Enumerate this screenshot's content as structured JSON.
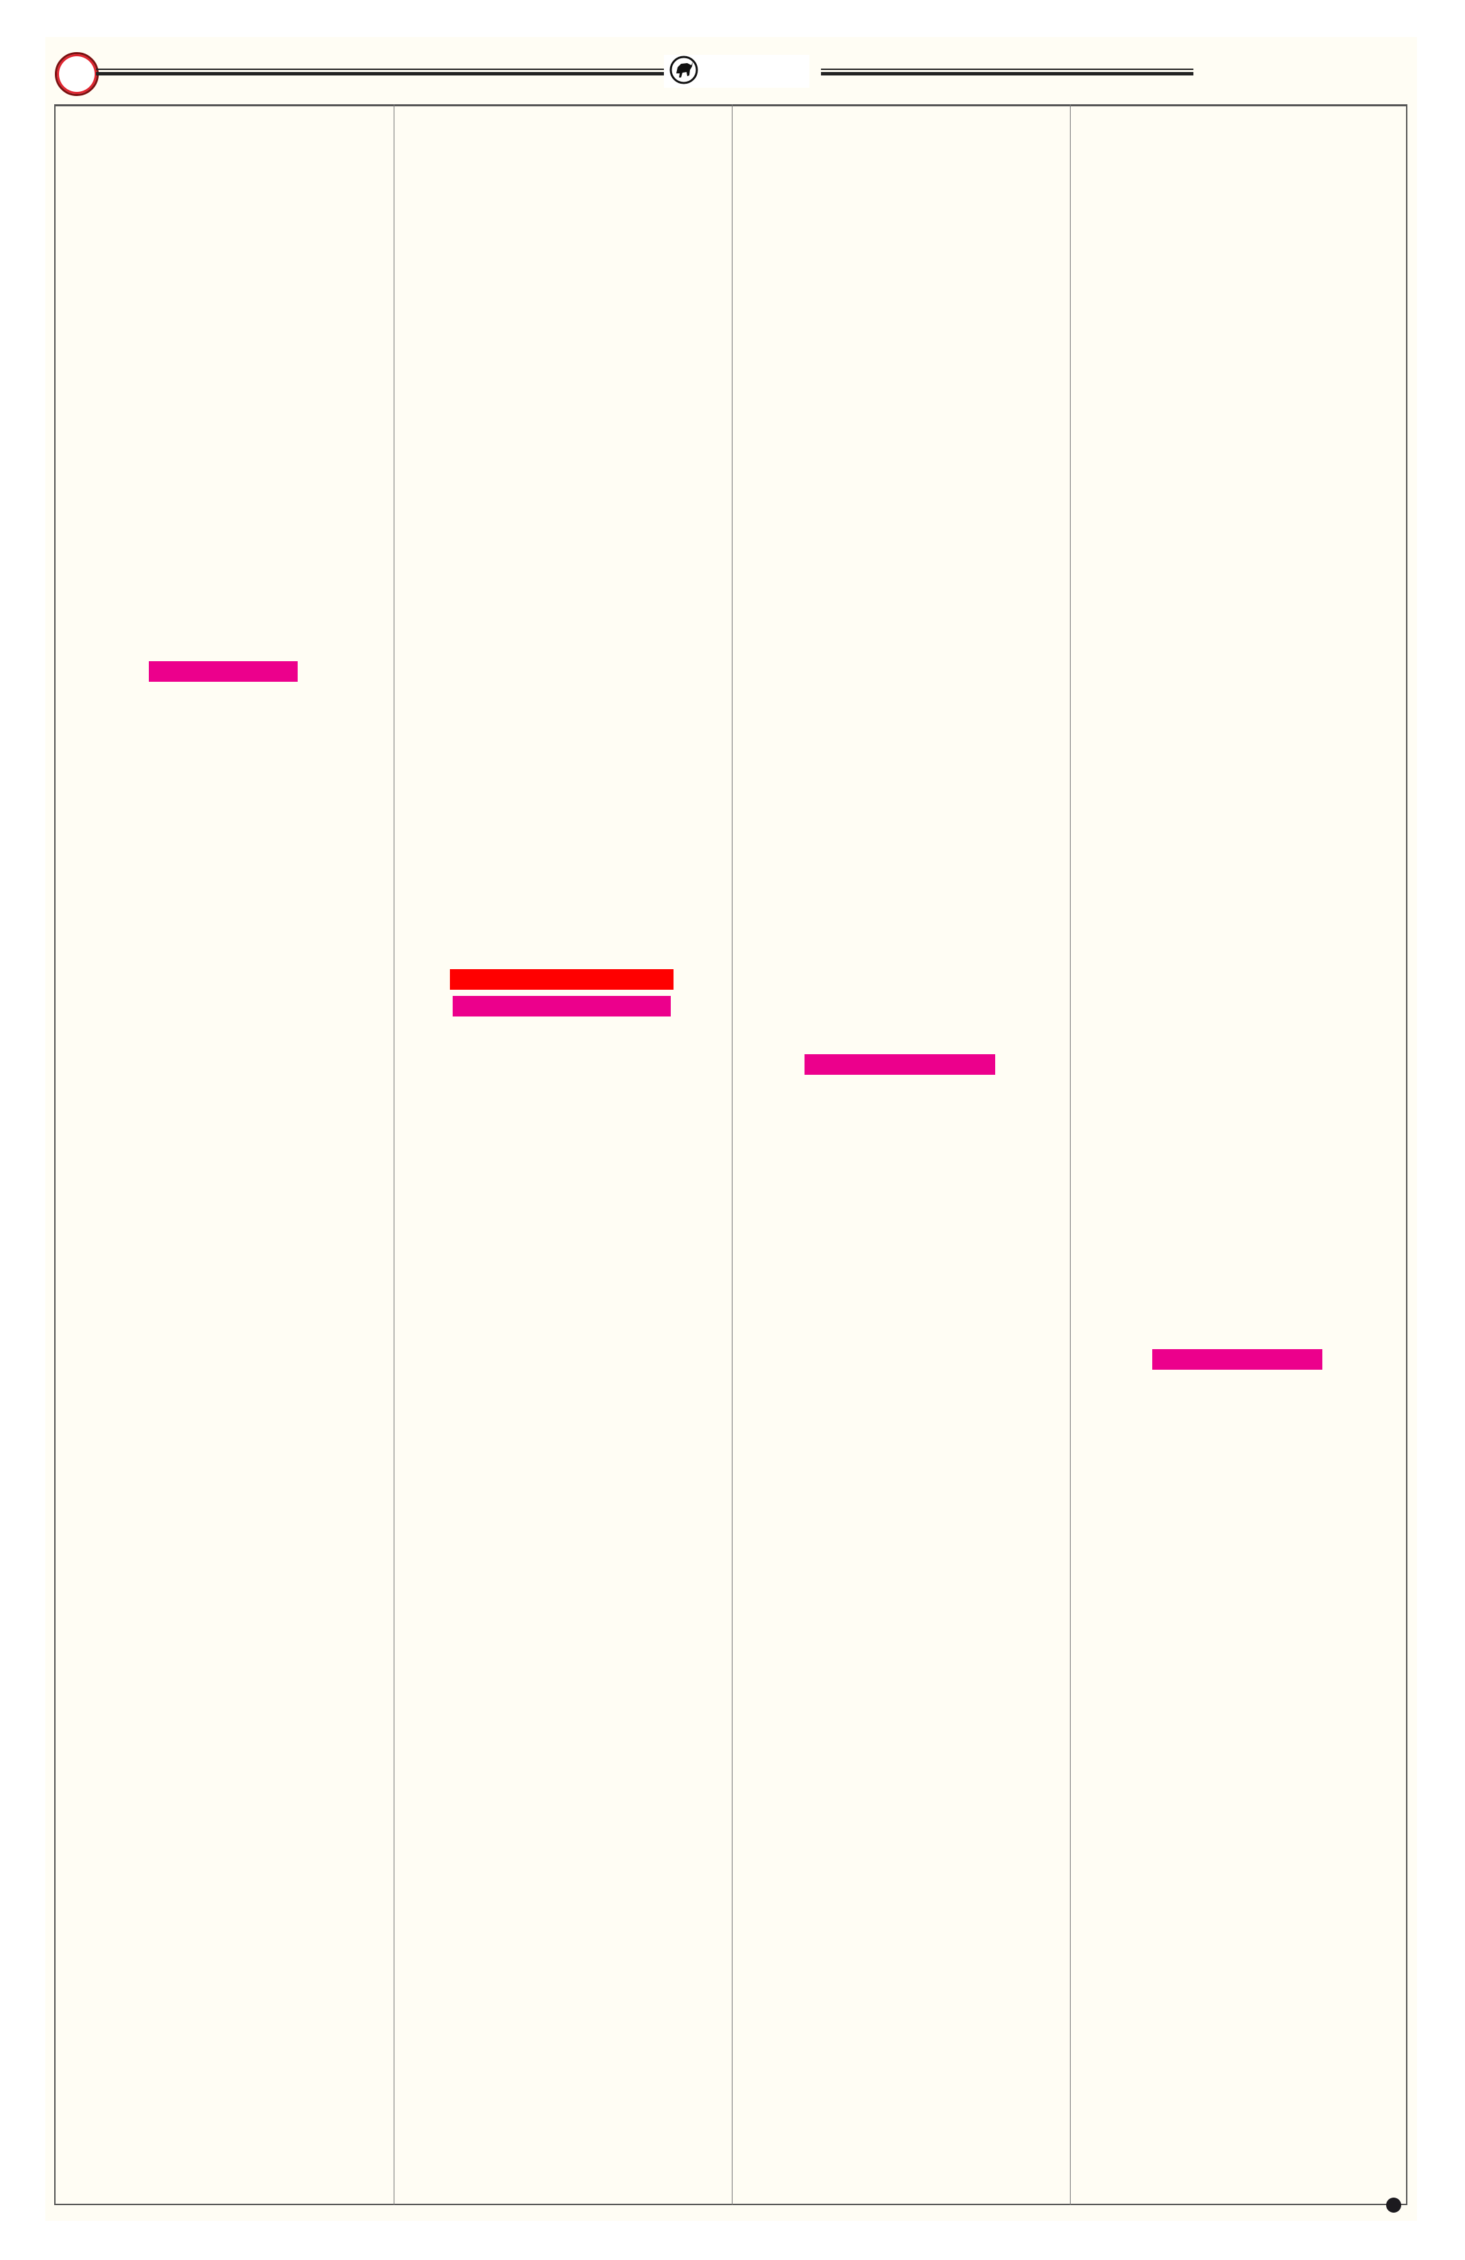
{
  "header": {
    "left_emblem_icon": "red-ring-icon",
    "center_logo_icon": "bull-logo-icon"
  },
  "columns": [
    {
      "redacted_bars": [
        {
          "color": "#ec008c"
        }
      ]
    },
    {
      "redacted_bars": [
        {
          "color": "#ff0000"
        },
        {
          "color": "#ec008c"
        }
      ]
    },
    {
      "redacted_bars": [
        {
          "color": "#ec008c"
        }
      ]
    },
    {
      "redacted_bars": [
        {
          "color": "#ec008c"
        }
      ]
    }
  ],
  "footer": {
    "marker_icon": "bullet-dot-icon"
  },
  "colors": {
    "background": "#fffdf4",
    "rule": "#222222",
    "accent_ring": "#e0242f",
    "highlight_pink": "#ec008c",
    "highlight_red": "#ff0000"
  }
}
